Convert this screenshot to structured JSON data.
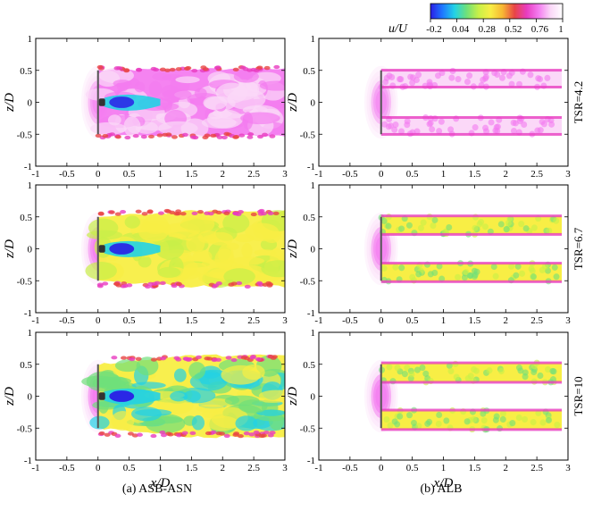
{
  "figure": {
    "captions": [
      "(a) ASB-ASN",
      "(b) ALB"
    ],
    "row_labels": [
      "TSR=4.2",
      "TSR=6.7",
      "TSR=10"
    ],
    "x_label": "x/D",
    "y_label": "z/D"
  },
  "colorbar": {
    "title": "u/U",
    "tick_labels": [
      "-0.2",
      "0.04",
      "0.28",
      "0.52",
      "0.76",
      "1"
    ],
    "range": [
      -0.2,
      1.0
    ],
    "colors": [
      "#2a1ee6",
      "#1e78ff",
      "#22d2e6",
      "#6fe07a",
      "#c8f048",
      "#f8ee45",
      "#f7b733",
      "#e84545",
      "#e83cc0",
      "#f47cf0",
      "#fbd8f8",
      "#ffffff"
    ]
  },
  "colors": {
    "rotor_line": "#555555",
    "nacelle": "#333333"
  },
  "chart_data": {
    "type": "heatmap",
    "variable": "u/U",
    "xlabel": "x/D",
    "ylabel": "z/D",
    "xlim": [
      -1,
      3
    ],
    "ylim": [
      -1,
      1
    ],
    "x_ticks": [
      -1,
      -0.5,
      0,
      0.5,
      1,
      1.5,
      2,
      2.5,
      3
    ],
    "y_ticks": [
      -1,
      -0.5,
      0,
      0.5,
      1
    ],
    "x_tick_labels": [
      "-1",
      "-0.5",
      "0",
      "0.5",
      "1",
      "1.5",
      "2",
      "2.5",
      "3"
    ],
    "y_tick_labels": [
      "-1",
      "-0.5",
      "0",
      "0.5",
      "1"
    ],
    "panels": [
      {
        "model": "ASB-ASN",
        "tsr": 4.2,
        "nacelle": true,
        "wake_deficit": 0.08,
        "core_deficit": 0.85
      },
      {
        "model": "ALB",
        "tsr": 4.2,
        "nacelle": false,
        "wake_deficit": 0.05,
        "core_deficit": 0.0
      },
      {
        "model": "ASB-ASN",
        "tsr": 6.7,
        "nacelle": true,
        "wake_deficit": 0.35,
        "core_deficit": 0.9
      },
      {
        "model": "ALB",
        "tsr": 6.7,
        "nacelle": false,
        "wake_deficit": 0.3,
        "core_deficit": 0.0
      },
      {
        "model": "ASB-ASN",
        "tsr": 10,
        "nacelle": true,
        "wake_deficit": 0.55,
        "core_deficit": 0.95
      },
      {
        "model": "ALB",
        "tsr": 10,
        "nacelle": false,
        "wake_deficit": 0.45,
        "core_deficit": 0.0
      }
    ]
  }
}
